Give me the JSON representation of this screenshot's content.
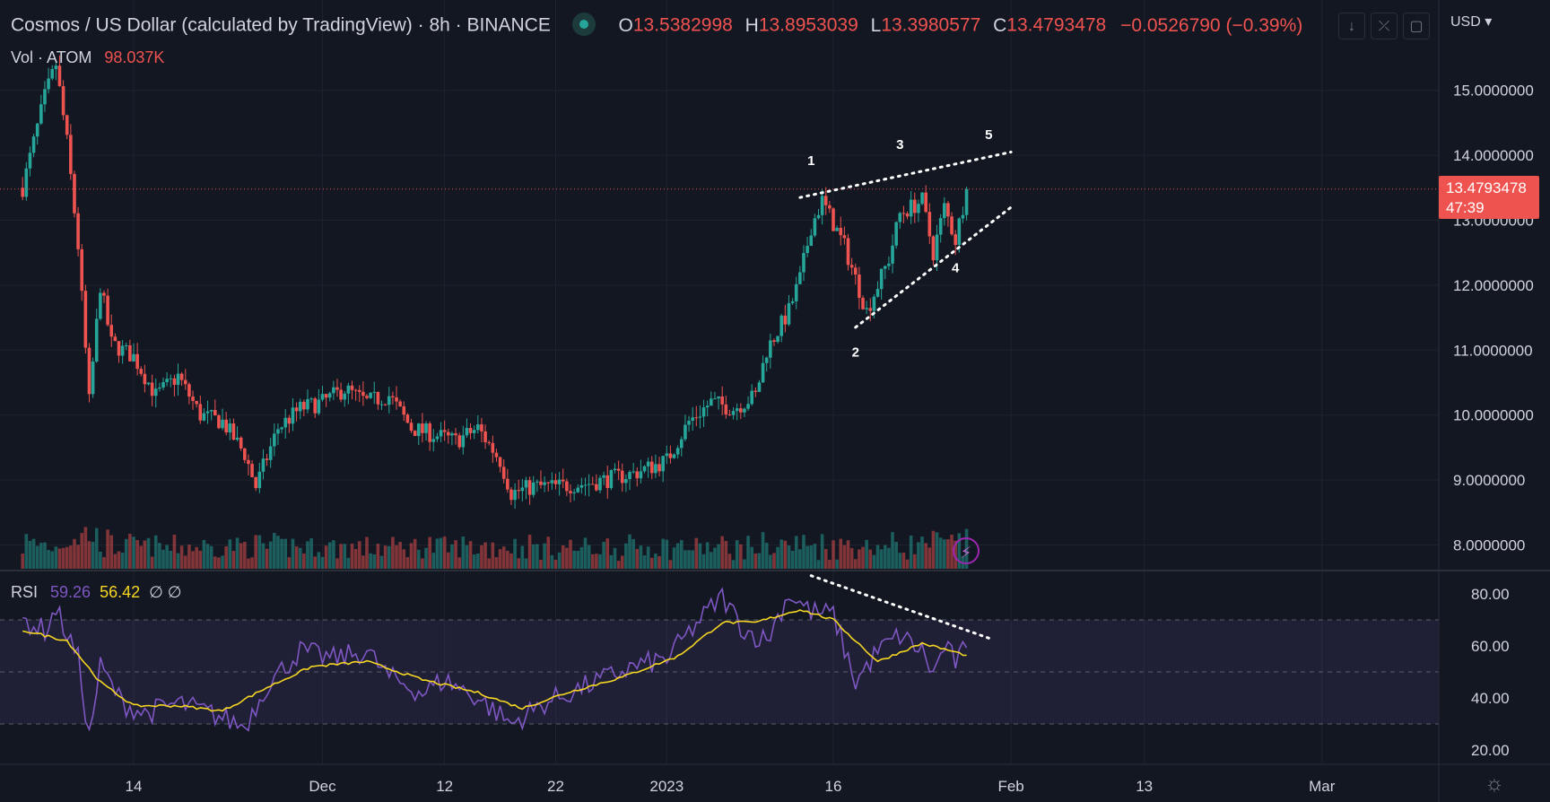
{
  "header": {
    "symbol_title": "Cosmos / US Dollar (calculated by TradingView) · 8h · BINANCE",
    "status_icon": "market-open-dot-icon",
    "ohlc": {
      "o_label": "O",
      "o_value": "13.5382998",
      "h_label": "H",
      "h_value": "13.8953039",
      "l_label": "L",
      "l_value": "13.3980577",
      "c_label": "C",
      "c_value": "13.4793478",
      "change": "−0.0526790 (−0.39%)"
    },
    "buttons": [
      {
        "name": "download-arrow-icon",
        "glyph": "↓"
      },
      {
        "name": "collapse-icon",
        "glyph": "⤫"
      },
      {
        "name": "fullscreen-icon",
        "glyph": "▢"
      }
    ],
    "currency": "USD ▾"
  },
  "volume_legend": {
    "label": "Vol · ATOM",
    "value": "98.037K"
  },
  "rsi_legend": {
    "label": "RSI",
    "rsi_value": "59.26",
    "ma_value": "56.42",
    "extra": "∅ ∅"
  },
  "price_badge": {
    "price": "13.4793478",
    "countdown": "47:39"
  },
  "colors": {
    "up": "#26a69a",
    "down": "#ef5350",
    "rsi": "#7e57c2",
    "rsi_ma": "#f5d622",
    "background": "#131722"
  },
  "chart_data": [
    {
      "type": "candlestick",
      "timeframe": "8h",
      "y_axis": {
        "ticks": [
          "8.0000000",
          "9.0000000",
          "10.0000000",
          "11.0000000",
          "12.0000000",
          "13.0000000",
          "14.0000000",
          "15.0000000"
        ],
        "tick_values": [
          8,
          9,
          10,
          11,
          12,
          13,
          14,
          15
        ],
        "range": [
          7.6,
          15.9
        ]
      },
      "x_axis": {
        "labels": [
          "14",
          "Dec",
          "12",
          "22",
          "2023",
          "16",
          "Feb",
          "13",
          "Mar"
        ],
        "label_dates": [
          "2022-11-14",
          "2022-12-01",
          "2022-12-12",
          "2022-12-22",
          "2023-01-01",
          "2023-01-16",
          "2023-02-01",
          "2023-02-13",
          "2023-03-01"
        ]
      },
      "last_price": 13.4793478,
      "close_anchors": [
        [
          "2022-11-04",
          13.5
        ],
        [
          "2022-11-06",
          14.9
        ],
        [
          "2022-11-07",
          15.4
        ],
        [
          "2022-11-08",
          14.2
        ],
        [
          "2022-11-09",
          12.6
        ],
        [
          "2022-11-10",
          10.2
        ],
        [
          "2022-11-11",
          12.0
        ],
        [
          "2022-11-12",
          11.1
        ],
        [
          "2022-11-14",
          10.9
        ],
        [
          "2022-11-16",
          10.3
        ],
        [
          "2022-11-18",
          10.6
        ],
        [
          "2022-11-20",
          10.0
        ],
        [
          "2022-11-22",
          9.9
        ],
        [
          "2022-11-24",
          9.4
        ],
        [
          "2022-11-25",
          8.9
        ],
        [
          "2022-11-27",
          9.8
        ],
        [
          "2022-11-29",
          10.1
        ],
        [
          "2022-12-01",
          10.2
        ],
        [
          "2022-12-03",
          10.4
        ],
        [
          "2022-12-05",
          10.2
        ],
        [
          "2022-12-07",
          10.3
        ],
        [
          "2022-12-09",
          9.8
        ],
        [
          "2022-12-11",
          9.7
        ],
        [
          "2022-12-13",
          9.6
        ],
        [
          "2022-12-15",
          9.8
        ],
        [
          "2022-12-17",
          9.3
        ],
        [
          "2022-12-18",
          8.8
        ],
        [
          "2022-12-20",
          8.9
        ],
        [
          "2022-12-22",
          8.9
        ],
        [
          "2022-12-25",
          8.95
        ],
        [
          "2022-12-29",
          9.1
        ],
        [
          "2023-01-01",
          9.3
        ],
        [
          "2023-01-03",
          9.9
        ],
        [
          "2023-01-05",
          10.2
        ],
        [
          "2023-01-07",
          10.1
        ],
        [
          "2023-01-09",
          10.3
        ],
        [
          "2023-01-10",
          11.0
        ],
        [
          "2023-01-12",
          11.6
        ],
        [
          "2023-01-13",
          12.1
        ],
        [
          "2023-01-14",
          12.9
        ],
        [
          "2023-01-15",
          13.3
        ],
        [
          "2023-01-17",
          12.6
        ],
        [
          "2023-01-19",
          11.6
        ],
        [
          "2023-01-21",
          12.4
        ],
        [
          "2023-01-22",
          13.1
        ],
        [
          "2023-01-24",
          13.3
        ],
        [
          "2023-01-25",
          12.5
        ],
        [
          "2023-01-26",
          13.2
        ],
        [
          "2023-01-27",
          12.7
        ],
        [
          "2023-01-28",
          13.48
        ]
      ],
      "annotations": [
        {
          "text": "1",
          "date": "2023-01-14",
          "price": 13.85
        },
        {
          "text": "2",
          "date": "2023-01-18",
          "price": 10.9
        },
        {
          "text": "3",
          "date": "2023-01-22",
          "price": 14.1
        },
        {
          "text": "4",
          "date": "2023-01-27",
          "price": 12.2
        },
        {
          "text": "5",
          "date": "2023-01-30",
          "price": 14.25
        }
      ],
      "trend_lines": [
        {
          "from": [
            "2023-01-13",
            13.35
          ],
          "to": [
            "2023-02-01",
            14.05
          ]
        },
        {
          "from": [
            "2023-01-18",
            11.35
          ],
          "to": [
            "2023-02-01",
            13.2
          ]
        }
      ]
    },
    {
      "type": "line",
      "name": "RSI",
      "y_axis": {
        "ticks": [
          "20.00",
          "40.00",
          "60.00",
          "80.00"
        ],
        "tick_values": [
          20,
          40,
          60,
          80
        ],
        "range": [
          15,
          87
        ]
      },
      "bands": {
        "upper": 70,
        "middle": 50,
        "lower": 30
      },
      "rsi_anchors": [
        [
          "2022-11-04",
          70
        ],
        [
          "2022-11-06",
          66
        ],
        [
          "2022-11-07",
          74
        ],
        [
          "2022-11-09",
          55
        ],
        [
          "2022-11-10",
          25
        ],
        [
          "2022-11-11",
          52
        ],
        [
          "2022-11-13",
          38
        ],
        [
          "2022-11-15",
          34
        ],
        [
          "2022-11-18",
          38
        ],
        [
          "2022-11-21",
          34
        ],
        [
          "2022-11-24",
          29
        ],
        [
          "2022-11-26",
          45
        ],
        [
          "2022-11-29",
          58
        ],
        [
          "2022-12-02",
          55
        ],
        [
          "2022-12-05",
          58
        ],
        [
          "2022-12-07",
          48
        ],
        [
          "2022-12-10",
          42
        ],
        [
          "2022-12-12",
          47
        ],
        [
          "2022-12-15",
          40
        ],
        [
          "2022-12-18",
          30
        ],
        [
          "2022-12-21",
          38
        ],
        [
          "2022-12-25",
          45
        ],
        [
          "2022-12-29",
          52
        ],
        [
          "2023-01-01",
          55
        ],
        [
          "2023-01-04",
          70
        ],
        [
          "2023-01-06",
          79
        ],
        [
          "2023-01-08",
          66
        ],
        [
          "2023-01-10",
          62
        ],
        [
          "2023-01-12",
          80
        ],
        [
          "2023-01-14",
          73
        ],
        [
          "2023-01-16",
          72
        ],
        [
          "2023-01-18",
          46
        ],
        [
          "2023-01-20",
          58
        ],
        [
          "2023-01-22",
          64
        ],
        [
          "2023-01-24",
          58
        ],
        [
          "2023-01-25",
          49
        ],
        [
          "2023-01-26",
          60
        ],
        [
          "2023-01-27",
          54
        ],
        [
          "2023-01-28",
          59.26
        ]
      ],
      "ma_anchors": [
        [
          "2022-11-04",
          66
        ],
        [
          "2022-11-08",
          62
        ],
        [
          "2022-11-11",
          46
        ],
        [
          "2022-11-14",
          37
        ],
        [
          "2022-11-18",
          37
        ],
        [
          "2022-11-22",
          35
        ],
        [
          "2022-11-26",
          44
        ],
        [
          "2022-11-30",
          52
        ],
        [
          "2022-12-05",
          54
        ],
        [
          "2022-12-10",
          47
        ],
        [
          "2022-12-15",
          42
        ],
        [
          "2022-12-19",
          36
        ],
        [
          "2022-12-23",
          42
        ],
        [
          "2022-12-28",
          48
        ],
        [
          "2023-01-02",
          56
        ],
        [
          "2023-01-06",
          69
        ],
        [
          "2023-01-09",
          69
        ],
        [
          "2023-01-13",
          74
        ],
        [
          "2023-01-16",
          70
        ],
        [
          "2023-01-20",
          54
        ],
        [
          "2023-01-24",
          61
        ],
        [
          "2023-01-28",
          56.42
        ]
      ],
      "divergence_line": {
        "from": [
          "2023-01-14",
          87
        ],
        "to": [
          "2023-01-30",
          63
        ]
      }
    },
    {
      "type": "bar",
      "name": "Volume",
      "last_value": "98.037K"
    }
  ]
}
